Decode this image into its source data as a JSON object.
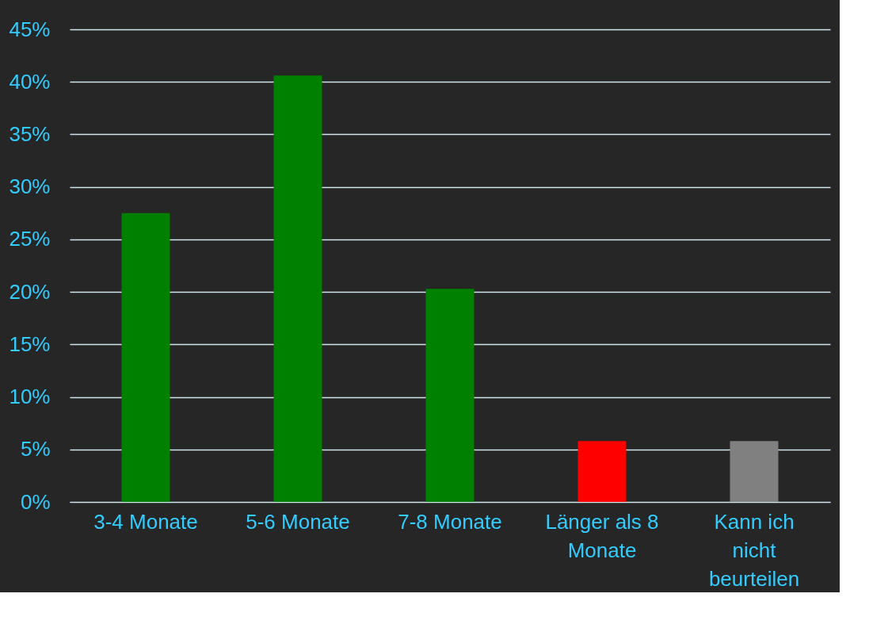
{
  "chart_data": {
    "type": "bar",
    "categories": [
      "3-4 Monate",
      "5-6 Monate",
      "7-8 Monate",
      "Länger als 8\nMonate",
      "Kann ich\nnicht\nbeurteilen"
    ],
    "values": [
      27.5,
      40.6,
      20.3,
      5.8,
      5.8
    ],
    "colors": [
      "#008000",
      "#008000",
      "#008000",
      "#ff0000",
      "#808080"
    ],
    "ylim": [
      0,
      45
    ],
    "yticks": [
      {
        "value": 0,
        "label": "0%"
      },
      {
        "value": 5,
        "label": "5%"
      },
      {
        "value": 10,
        "label": "10%"
      },
      {
        "value": 15,
        "label": "15%"
      },
      {
        "value": 20,
        "label": "20%"
      },
      {
        "value": 25,
        "label": "25%"
      },
      {
        "value": 30,
        "label": "30%"
      },
      {
        "value": 35,
        "label": "35%"
      },
      {
        "value": 40,
        "label": "40%"
      },
      {
        "value": 45,
        "label": "45%"
      }
    ],
    "grid": "y"
  }
}
